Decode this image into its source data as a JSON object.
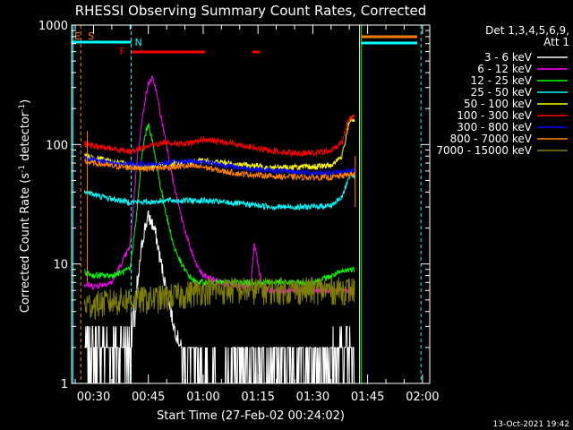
{
  "chart_data": {
    "type": "line",
    "title": "RHESSI Observing Summary Count Rates, Corrected",
    "xlabel": "Start Time (27-Feb-02 00:24:02)",
    "ylabel_main": "Corrected Count Rate (s",
    "ylabel_sup1": "-1",
    "ylabel_mid": " detector",
    "ylabel_sup2": "-1",
    "ylabel_end": ")",
    "yscale": "log",
    "ylim": [
      1,
      1000
    ],
    "xlim_minutes": [
      24.0,
      122.0
    ],
    "x_ticks": [
      "00:30",
      "00:45",
      "01:00",
      "01:15",
      "01:30",
      "01:45",
      "02:00"
    ],
    "x_tick_minutes": [
      30,
      45,
      60,
      75,
      90,
      105,
      120
    ],
    "y_ticks": [
      "1",
      "10",
      "100",
      "1000"
    ],
    "y_tick_values": [
      1,
      10,
      100,
      1000
    ],
    "legend_header_1": "Det 1,3,4,5,6,9,",
    "legend_header_2": "Att 1",
    "series": [
      {
        "name": "3 - 6 keV",
        "color": "#ffffff",
        "x": [
          24,
          30,
          36,
          40,
          42,
          43,
          44,
          45,
          46,
          47,
          48,
          50,
          52,
          54,
          56,
          58,
          60,
          65,
          70,
          80,
          90,
          100
        ],
        "y": [
          2,
          2,
          2,
          2,
          6,
          13,
          20,
          25,
          22,
          18,
          12,
          6,
          3,
          2,
          1.5,
          1.5,
          1.2,
          1,
          1.5,
          1.5,
          1.5,
          2
        ]
      },
      {
        "name": "6 - 12 keV",
        "color": "#ff00ff",
        "x": [
          24,
          25,
          30,
          35,
          40,
          42,
          44,
          45,
          46,
          47,
          48,
          50,
          52,
          54,
          56,
          58,
          60,
          65,
          70,
          73,
          74,
          75,
          76,
          78,
          85,
          90,
          100
        ],
        "y": [
          7,
          7,
          6.5,
          7,
          14,
          80,
          230,
          320,
          360,
          300,
          200,
          100,
          45,
          25,
          15,
          10,
          8,
          7,
          6.5,
          6.5,
          15,
          10,
          7,
          6,
          6,
          6,
          6
        ]
      },
      {
        "name": "12 - 25 keV",
        "color": "#00ff00",
        "x": [
          24,
          25,
          30,
          35,
          40,
          42,
          43,
          44,
          45,
          46,
          47,
          48,
          50,
          52,
          54,
          56,
          58,
          60,
          65,
          70,
          80,
          90,
          100
        ],
        "y": [
          9,
          9,
          8,
          8,
          9,
          30,
          70,
          115,
          150,
          110,
          75,
          50,
          25,
          14,
          10,
          8,
          7,
          7,
          7,
          7,
          7,
          7,
          9
        ]
      },
      {
        "name": "25 - 50 keV",
        "color": "#00ffff",
        "x": [
          24,
          25,
          27,
          30,
          35,
          40,
          45,
          50,
          60,
          70,
          80,
          90,
          95,
          98,
          100
        ],
        "y": [
          55,
          50,
          42,
          38,
          35,
          33,
          33,
          34,
          34,
          32,
          30,
          30,
          31,
          36,
          55
        ]
      },
      {
        "name": "50 - 100 keV",
        "color": "#ffff00",
        "x": [
          24,
          25,
          30,
          35,
          40,
          45,
          50,
          55,
          60,
          70,
          80,
          90,
          95,
          98,
          100
        ],
        "y": [
          85,
          82,
          78,
          72,
          67,
          65,
          68,
          70,
          73,
          68,
          64,
          65,
          67,
          80,
          160
        ]
      },
      {
        "name": "100 - 300 keV",
        "color": "#ff0000",
        "x": [
          24,
          25,
          30,
          35,
          40,
          45,
          50,
          55,
          60,
          65,
          70,
          75,
          80,
          85,
          90,
          95,
          98,
          100
        ],
        "y": [
          125,
          105,
          97,
          92,
          88,
          97,
          105,
          100,
          110,
          106,
          100,
          92,
          88,
          85,
          85,
          88,
          105,
          170
        ]
      },
      {
        "name": "300 - 800 keV",
        "color": "#0000ff",
        "x": [
          24,
          25,
          30,
          35,
          40,
          45,
          50,
          55,
          60,
          65,
          70,
          75,
          80,
          90,
          95,
          100
        ],
        "y": [
          85,
          80,
          75,
          70,
          68,
          68,
          70,
          72,
          72,
          68,
          64,
          62,
          60,
          58,
          58,
          60
        ]
      },
      {
        "name": "800 - 7000 keV",
        "color": "#ff8000",
        "x": [
          24,
          25,
          30,
          35,
          40,
          45,
          50,
          55,
          60,
          65,
          70,
          80,
          90,
          95,
          100
        ],
        "y": [
          80,
          74,
          70,
          66,
          64,
          63,
          64,
          66,
          65,
          60,
          57,
          54,
          53,
          53,
          56
        ]
      },
      {
        "name": "7000 - 15000 keV",
        "color": "#808000",
        "x": [
          24,
          25,
          30,
          35,
          40,
          45,
          50,
          55,
          60,
          65,
          70,
          80,
          90,
          95,
          100
        ],
        "y": [
          4.5,
          4.5,
          4.5,
          4.8,
          5,
          5,
          5.2,
          5.5,
          6,
          6,
          6,
          6,
          6,
          6,
          6
        ]
      }
    ],
    "flags": [
      {
        "label": "E",
        "color": "#ff8000"
      },
      {
        "label": "S",
        "color": "#ff8000"
      },
      {
        "label": "N",
        "color": "#00ffff"
      },
      {
        "label": "F",
        "color": "#ff0000"
      }
    ],
    "footer_date": "13-Oct-2021 19:42"
  }
}
